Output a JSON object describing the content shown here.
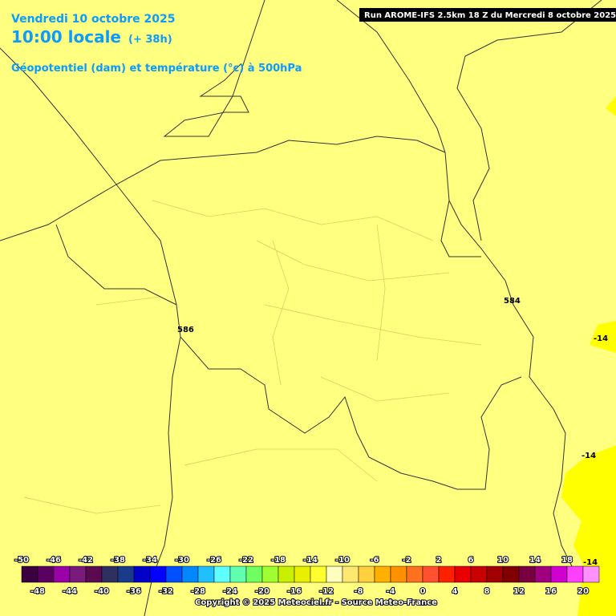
{
  "header": {
    "date": "Vendredi 10 octobre 2025",
    "time": "10:00 locale",
    "lead": "(+ 38h)",
    "subtitle": "Géopotentiel (dam) et température (°c) à 500hPa"
  },
  "run": "Run AROME-IFS 2.5km 18 Z du Mercredi 8 octobre 2025",
  "contour_labels": [
    "586",
    "584",
    "-14",
    "-14",
    "-14"
  ],
  "legend": {
    "top_labels": [
      -50,
      -46,
      -42,
      -38,
      -34,
      -30,
      -26,
      -22,
      -18,
      -14,
      -10,
      -6,
      -2,
      2,
      6,
      10,
      14,
      18
    ],
    "bottom_labels": [
      -48,
      -44,
      -40,
      -36,
      -32,
      -28,
      -24,
      -20,
      -16,
      -12,
      -8,
      -4,
      0,
      4,
      8,
      12,
      16,
      20
    ],
    "colors": [
      "#3a0040",
      "#5a0060",
      "#9a00a8",
      "#7a1a7a",
      "#5a0a50",
      "#303060",
      "#1a3a8a",
      "#0000c8",
      "#0000ff",
      "#0050ff",
      "#0088ff",
      "#20c0ff",
      "#60ffff",
      "#60ffb0",
      "#70ff60",
      "#a0ff30",
      "#c8f000",
      "#e8f000",
      "#ffff30",
      "#ffffc0",
      "#ffe870",
      "#ffd040",
      "#ffb000",
      "#ff9000",
      "#ff7020",
      "#ff5030",
      "#ff2000",
      "#e80000",
      "#c80000",
      "#a00000",
      "#800000",
      "#780040",
      "#a00080",
      "#d000d0",
      "#ff40ff",
      "#ff90ff"
    ]
  },
  "copyright": "Copyright © 2025 Meteociel.fr - Source Meteo-France"
}
